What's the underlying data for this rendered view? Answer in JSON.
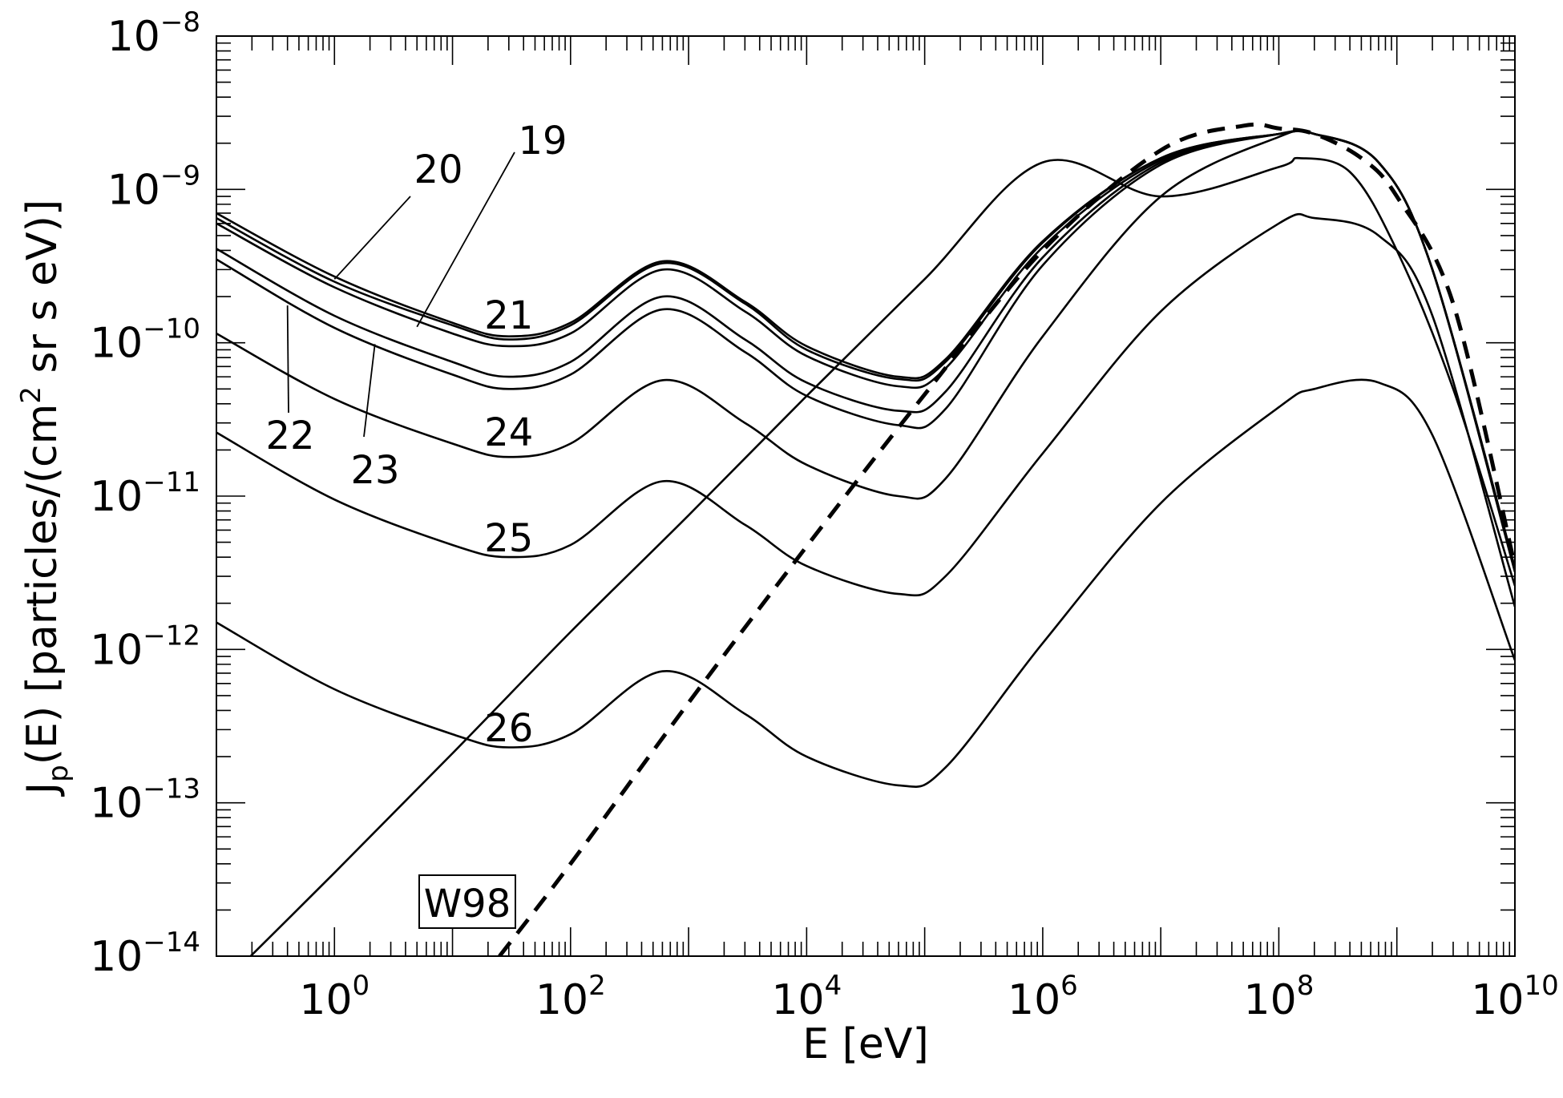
{
  "chart_data": {
    "type": "line",
    "xlabel": "E [eV]",
    "ylabel_prefix": "J",
    "ylabel_sub": "p",
    "ylabel_mid": "(E) [particles/(cm",
    "ylabel_sup": "2",
    "ylabel_suffix": " sr s eV)]",
    "x_scale": "log",
    "y_scale": "log",
    "xlim": [
      0.1,
      10000000000
    ],
    "ylim": [
      1e-14,
      1e-08
    ],
    "x_ticks": [
      {
        "base": "10",
        "exp": "0",
        "value": 1
      },
      {
        "base": "10",
        "exp": "2",
        "value": 100
      },
      {
        "base": "10",
        "exp": "4",
        "value": 10000
      },
      {
        "base": "10",
        "exp": "6",
        "value": 1000000
      },
      {
        "base": "10",
        "exp": "8",
        "value": 100000000
      },
      {
        "base": "10",
        "exp": "10",
        "value": 10000000000
      }
    ],
    "y_ticks": [
      {
        "base": "10",
        "exp": "−14",
        "value": 1e-14
      },
      {
        "base": "10",
        "exp": "−13",
        "value": 1e-13
      },
      {
        "base": "10",
        "exp": "−12",
        "value": 1e-12
      },
      {
        "base": "10",
        "exp": "−11",
        "value": 1e-11
      },
      {
        "base": "10",
        "exp": "−10",
        "value": 1e-10
      },
      {
        "base": "10",
        "exp": "−9",
        "value": 1e-09
      },
      {
        "base": "10",
        "exp": "−8",
        "value": 1e-08
      }
    ],
    "series": [
      {
        "label": "19",
        "x": [
          0.1,
          1,
          10,
          30,
          100,
          600,
          3000,
          10000,
          60000,
          150000,
          1000000,
          10000000,
          100000000,
          200000000,
          700000000,
          2000000000,
          10000000000
        ],
        "y": [
          6.5e-10,
          2.5e-10,
          1.3e-10,
          1.05e-10,
          1.3e-10,
          3.3e-10,
          1.8e-10,
          9e-11,
          5.8e-11,
          7.5e-11,
          4.5e-10,
          1.6e-09,
          2.3e-09,
          2.3e-09,
          1.5e-09,
          3e-10,
          3.4e-12
        ]
      },
      {
        "label": "20",
        "x": [
          0.1,
          1,
          10,
          30,
          100,
          600,
          3000,
          10000,
          60000,
          150000,
          1000000,
          10000000,
          100000000,
          200000000,
          700000000,
          2000000000,
          10000000000
        ],
        "y": [
          7e-10,
          2.7e-10,
          1.35e-10,
          1.1e-10,
          1.35e-10,
          3.4e-10,
          1.85e-10,
          9.5e-11,
          6e-11,
          7.8e-11,
          4.6e-10,
          1.6e-09,
          2.3e-09,
          2.3e-09,
          1.5e-09,
          3e-10,
          3.4e-12
        ]
      },
      {
        "label": "21",
        "x": [
          0.1,
          1,
          10,
          30,
          100,
          600,
          3000,
          10000,
          60000,
          150000,
          1000000,
          10000000,
          100000000,
          200000000,
          700000000,
          2000000000,
          10000000000
        ],
        "y": [
          6e-10,
          2.3e-10,
          1.15e-10,
          9.5e-11,
          1.15e-10,
          3e-10,
          1.6e-10,
          8.2e-11,
          5.2e-11,
          6.8e-11,
          4.2e-10,
          1.55e-09,
          2.3e-09,
          2.3e-09,
          1.5e-09,
          3e-10,
          3.3e-12
        ]
      },
      {
        "label": "22",
        "x": [
          0.1,
          1,
          10,
          30,
          100,
          600,
          3000,
          10000,
          60000,
          150000,
          1000000,
          10000000,
          100000000,
          200000000,
          700000000,
          2000000000,
          10000000000
        ],
        "y": [
          4.1e-10,
          1.5e-10,
          7.5e-11,
          6e-11,
          7.5e-11,
          2e-10,
          1.05e-10,
          5.5e-11,
          3.6e-11,
          4.8e-11,
          3.6e-10,
          1.5e-09,
          2.3e-09,
          2.3e-09,
          1.5e-09,
          3e-10,
          3.3e-12
        ]
      },
      {
        "label": "23",
        "x": [
          0.1,
          1,
          10,
          30,
          100,
          600,
          3000,
          10000,
          60000,
          150000,
          1000000,
          10000000,
          100000000,
          200000000,
          700000000,
          2000000000,
          10000000000
        ],
        "y": [
          3.5e-10,
          1.25e-10,
          6.2e-11,
          5e-11,
          6.2e-11,
          1.65e-10,
          8.7e-11,
          4.5e-11,
          2.9e-11,
          3.7e-11,
          3.2e-10,
          1.45e-09,
          2.3e-09,
          2.3e-09,
          1.5e-09,
          3e-10,
          3.3e-12
        ]
      },
      {
        "label": "24",
        "x": [
          0.1,
          1,
          10,
          30,
          100,
          600,
          3000,
          10000,
          60000,
          150000,
          1000000,
          10000000,
          100000000,
          200000000,
          700000000,
          2000000000,
          10000000000
        ],
        "y": [
          1.15e-10,
          4.3e-11,
          2.2e-11,
          1.8e-11,
          2.2e-11,
          5.7e-11,
          3e-11,
          1.6e-11,
          1e-11,
          1.3e-11,
          1.1e-10,
          9e-10,
          2.2e-09,
          2.3e-09,
          1.5e-09,
          3e-10,
          3.2e-12
        ]
      },
      {
        "label": "",
        "x": [
          0.1,
          1,
          10,
          100,
          1000,
          10000,
          100000,
          1000000,
          10000000,
          100000000,
          150000000,
          400000000,
          1000000000,
          3000000000,
          10000000000
        ],
        "y": [
          6e-15,
          3.5e-14,
          2.1e-13,
          1.3e-12,
          7.5e-12,
          4.5e-11,
          2.6e-10,
          1.5e-09,
          9e-10,
          1.4e-09,
          1.6e-09,
          1.3e-09,
          4e-10,
          5e-11,
          2.6e-12
        ]
      },
      {
        "label": "25",
        "x": [
          0.1,
          1,
          10,
          30,
          100,
          600,
          3000,
          10000,
          60000,
          150000,
          1000000,
          10000000,
          100000000,
          200000000,
          700000000,
          2000000000,
          10000000000
        ],
        "y": [
          2.6e-11,
          9.5e-12,
          4.8e-12,
          4e-12,
          4.8e-12,
          1.25e-11,
          6.5e-12,
          3.5e-12,
          2.3e-12,
          3e-12,
          1.9e-11,
          1.6e-10,
          6e-10,
          6.5e-10,
          5e-10,
          1.5e-10,
          1.9e-12
        ]
      },
      {
        "label": "26",
        "x": [
          0.1,
          1,
          10,
          30,
          100,
          600,
          3000,
          10000,
          60000,
          150000,
          1000000,
          10000000,
          100000000,
          200000000,
          700000000,
          2000000000,
          10000000000
        ],
        "y": [
          1.5e-12,
          5.5e-13,
          2.8e-13,
          2.3e-13,
          2.8e-13,
          7.2e-13,
          3.8e-13,
          2e-13,
          1.3e-13,
          1.7e-13,
          1.1e-12,
          9e-12,
          3.8e-11,
          5e-11,
          5.5e-11,
          2.5e-11,
          8.5e-13
        ]
      }
    ],
    "dashed_series": {
      "label": "W98",
      "x": [
        25,
        100,
        1000,
        10000,
        100000,
        1000000,
        10000000,
        50000000,
        100000000,
        200000000,
        500000000,
        1000000000,
        3000000000,
        10000000000
      ],
      "y": [
        1e-14,
        4e-14,
        4.5e-13,
        4.7e-12,
        4.6e-11,
        4e-10,
        1.8e-09,
        2.6e-09,
        2.5e-09,
        2.3e-09,
        1.6e-09,
        9e-10,
        1.8e-10,
        3.5e-12
      ]
    },
    "grid": false,
    "legend": "none"
  }
}
